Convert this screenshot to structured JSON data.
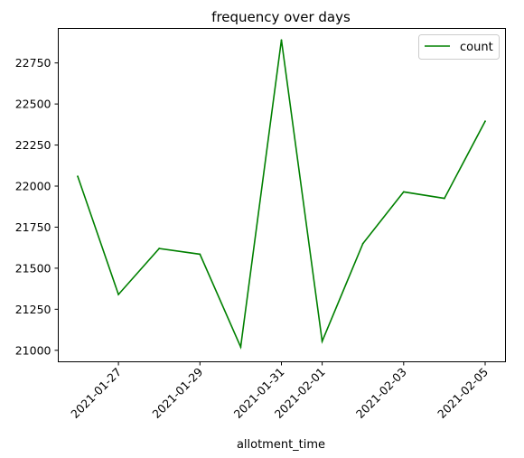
{
  "chart_data": {
    "type": "line",
    "title": "frequency over days",
    "xlabel": "allotment_time",
    "ylabel": "",
    "x": [
      "2021-01-26",
      "2021-01-27",
      "2021-01-28",
      "2021-01-29",
      "2021-01-30",
      "2021-01-31",
      "2021-02-01",
      "2021-02-02",
      "2021-02-03",
      "2021-02-04",
      "2021-02-05"
    ],
    "x_ticks": [
      "2021-01-27",
      "2021-01-29",
      "2021-01-31",
      "2021-02-01",
      "2021-02-03",
      "2021-02-05"
    ],
    "y_ticks": [
      21000,
      21250,
      21500,
      21750,
      22000,
      22250,
      22500,
      22750
    ],
    "ylim": [
      20930,
      22960
    ],
    "series": [
      {
        "name": "count",
        "color": "#008000",
        "values": [
          22060,
          21340,
          21620,
          21585,
          21020,
          22890,
          21055,
          21650,
          21965,
          21925,
          22395
        ]
      }
    ],
    "legend": "top-right",
    "grid": false
  }
}
